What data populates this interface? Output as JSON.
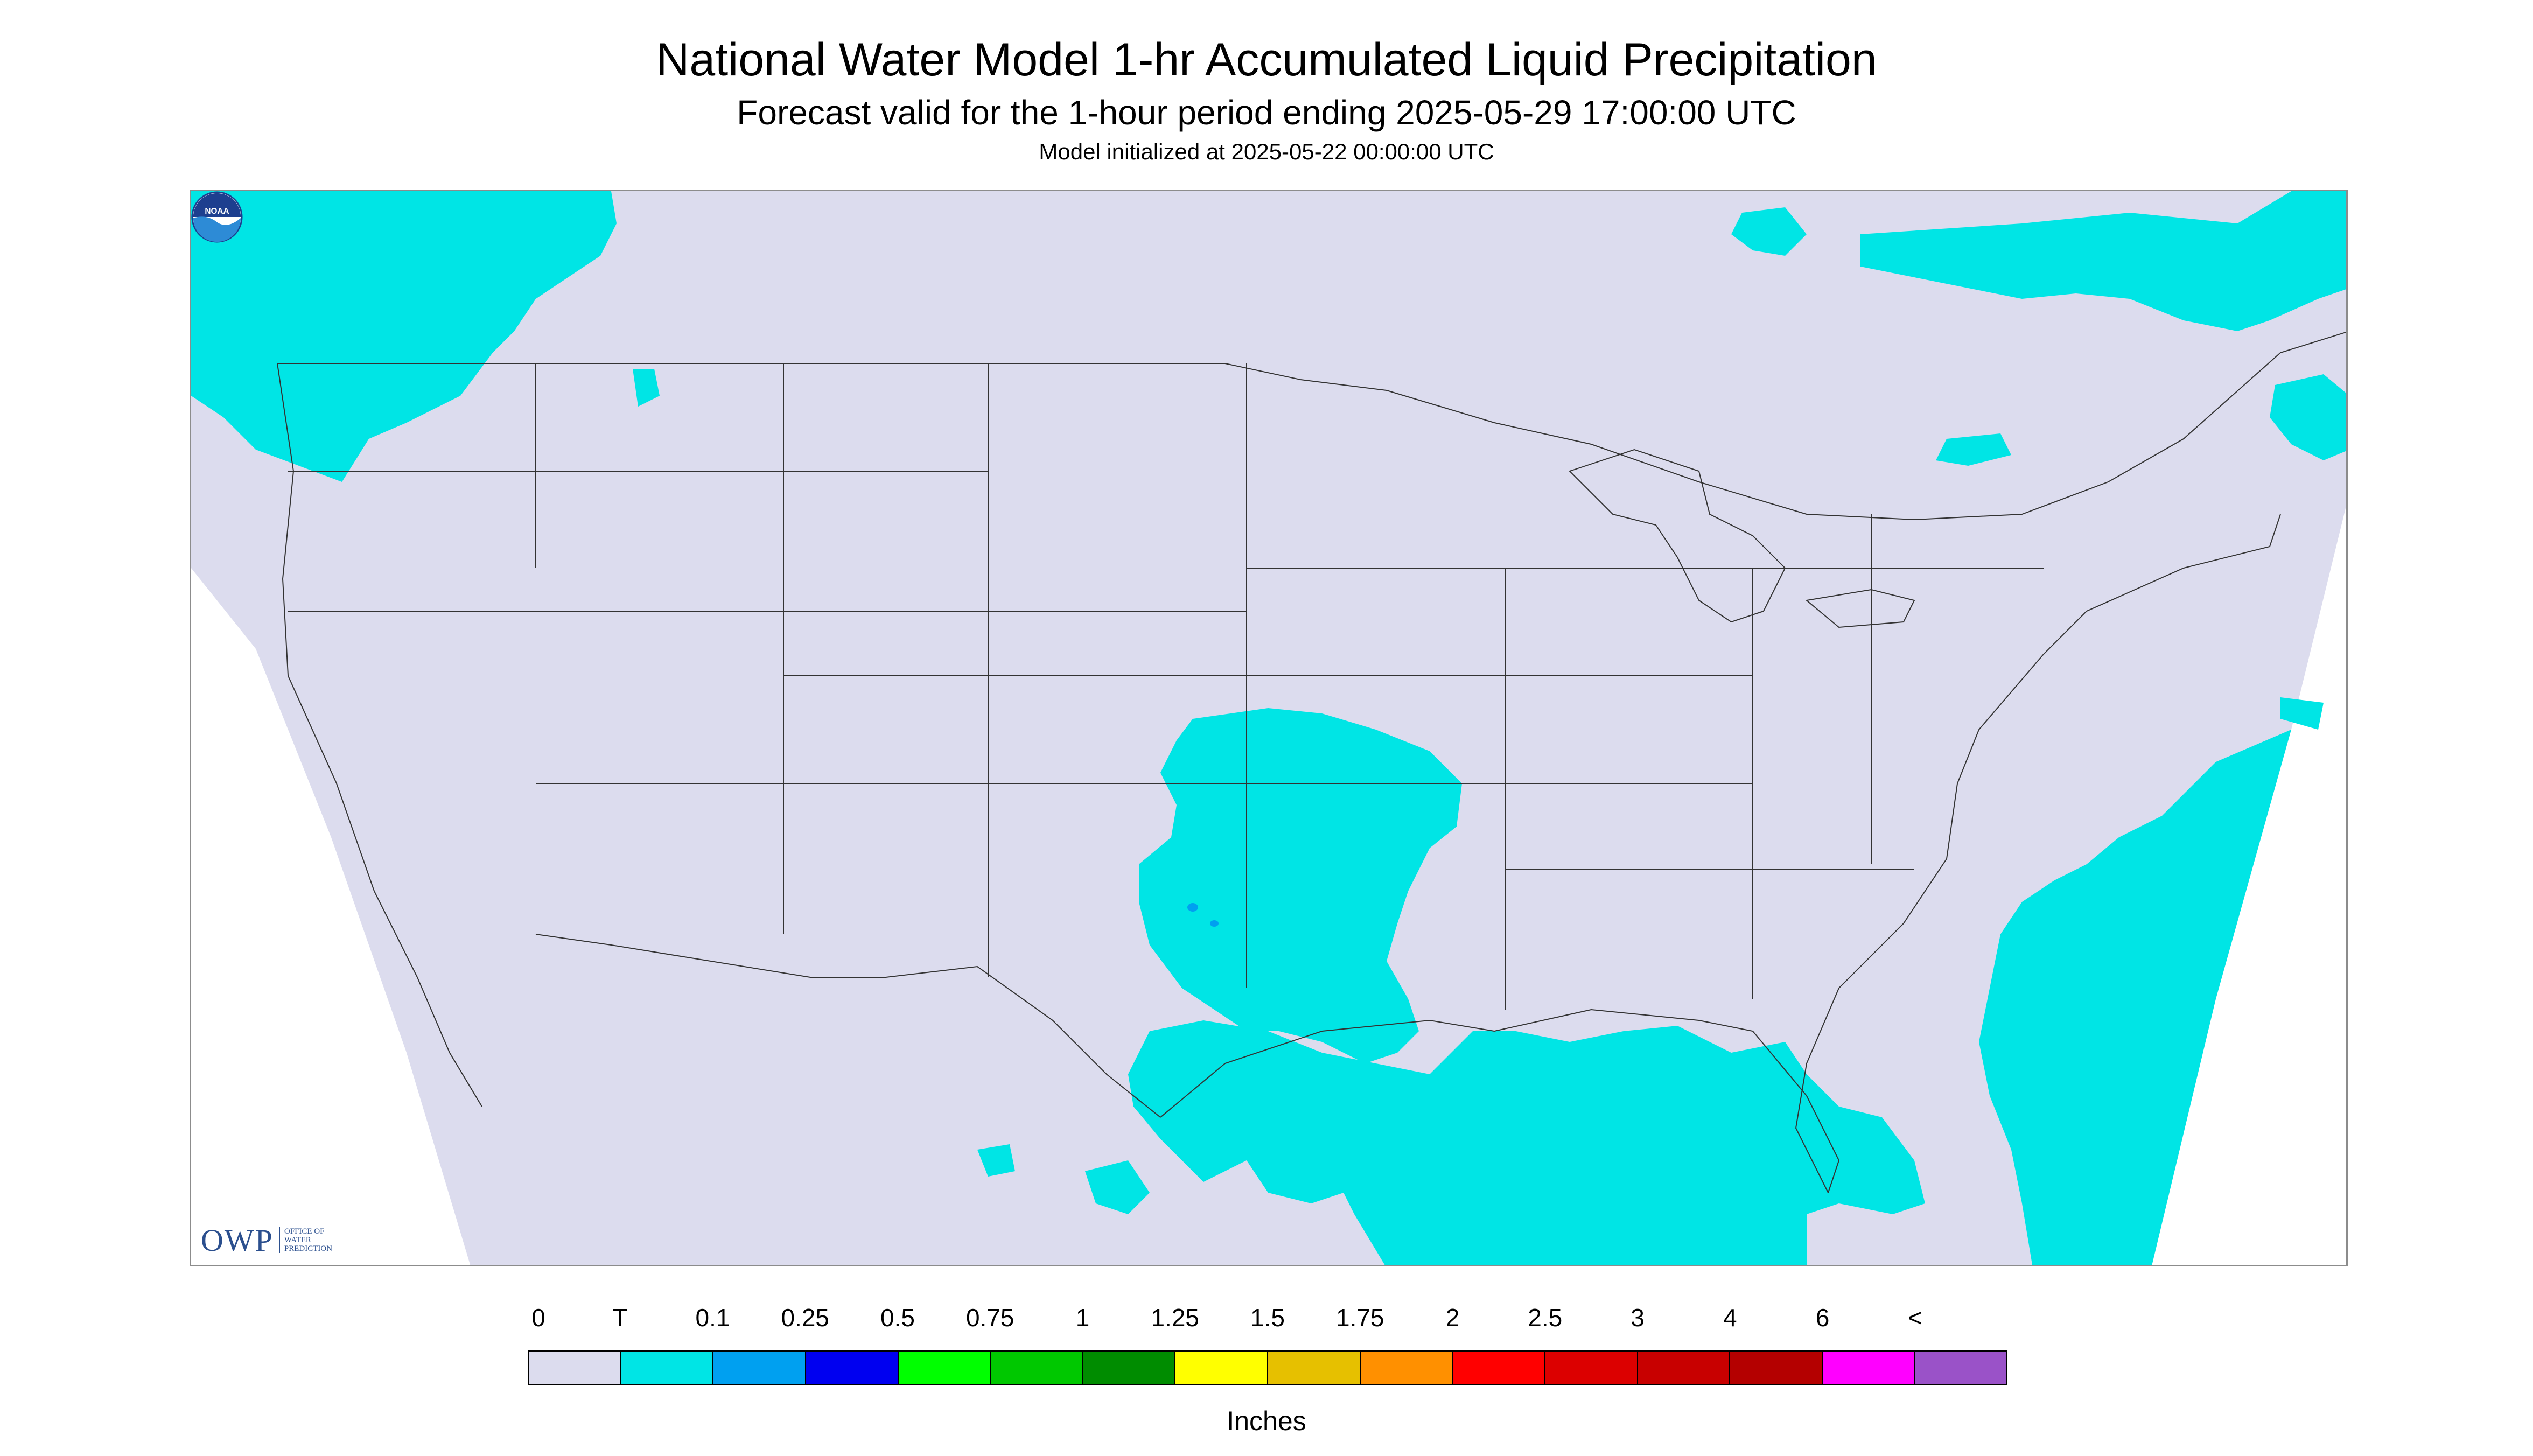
{
  "title": "National Water Model 1-hr Accumulated Liquid Precipitation",
  "subtitle": "Forecast valid for the 1-hour period ending 2025-05-29 17:00:00 UTC",
  "init": "Model initialized at 2025-05-22 00:00:00 UTC",
  "logo_left": {
    "text": "OWP",
    "sub": "OFFICE OF\nWATER\nPREDICTION"
  },
  "logo_right": {
    "text": "NOAA",
    "icon": "noaa-logo-icon"
  },
  "colors": {
    "background": "#dcdcee",
    "trace": "#00e5e5",
    "light": "#00a0f0",
    "outside": "#ffffff",
    "border": "#222222"
  },
  "legend": {
    "unit": "Inches",
    "tick_labels": [
      "0",
      "T",
      "0.1",
      "0.25",
      "0.5",
      "0.75",
      "1",
      "1.25",
      "1.5",
      "1.75",
      "2",
      "2.5",
      "3",
      "4",
      "6",
      "<"
    ],
    "colors": [
      "#dcdcee",
      "#00e5e5",
      "#00a0f0",
      "#0000f0",
      "#00ff00",
      "#00c800",
      "#008c00",
      "#ffff00",
      "#e6c000",
      "#ff9000",
      "#ff0000",
      "#dc0000",
      "#c80000",
      "#b40000",
      "#ff00ff",
      "#9a52c8"
    ]
  }
}
